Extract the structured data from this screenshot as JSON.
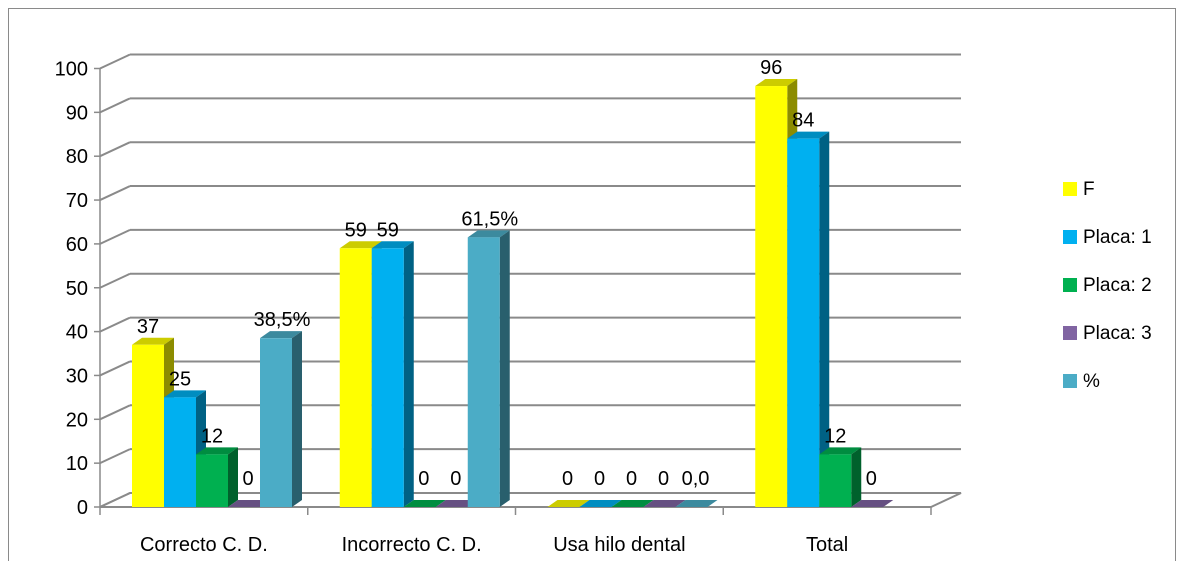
{
  "chart_data": {
    "type": "bar",
    "style": "3d-clustered-column",
    "categories": [
      "Correcto C. D.",
      "Incorrecto C. D.",
      "Usa hilo dental",
      "Total"
    ],
    "series": [
      {
        "name": "F",
        "color": "#ffff00",
        "values": [
          37,
          59,
          0,
          96
        ],
        "labels": [
          "37",
          "59",
          "0",
          "96"
        ]
      },
      {
        "name": "Placa: 1",
        "color": "#00b0f0",
        "values": [
          25,
          59,
          0,
          84
        ],
        "labels": [
          "25",
          "59",
          "0",
          "84"
        ]
      },
      {
        "name": "Placa: 2",
        "color": "#00b050",
        "values": [
          12,
          0,
          0,
          12
        ],
        "labels": [
          "12",
          "0",
          "0",
          "12"
        ]
      },
      {
        "name": "Placa: 3",
        "color": "#8064a2",
        "values": [
          0,
          0,
          0,
          0
        ],
        "labels": [
          "0",
          "0",
          "0",
          "0"
        ]
      },
      {
        "name": "%",
        "color": "#4bacc6",
        "values": [
          38.5,
          61.5,
          0,
          null
        ],
        "labels": [
          "38,5%",
          "61,5%",
          "0,0",
          ""
        ]
      }
    ],
    "ylim": [
      0,
      100
    ],
    "yticks": [
      "0",
      "10",
      "20",
      "30",
      "40",
      "50",
      "60",
      "70",
      "80",
      "90",
      "100"
    ],
    "grid": true,
    "legend": "right"
  }
}
